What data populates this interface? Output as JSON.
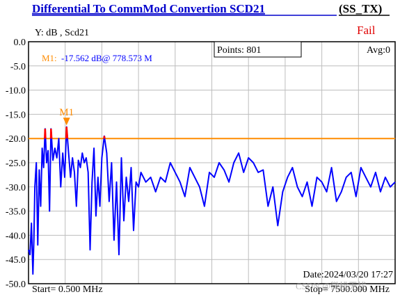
{
  "header": {
    "title": "Differential To CommMod Convertion SCD21",
    "tag": "(SS_TX)"
  },
  "status": {
    "result": "Fail"
  },
  "info": {
    "y_label": "Y: dB , Scd21",
    "points": "Points: 801",
    "avg": "Avg:0",
    "marker_readout_name": "M1:",
    "marker_readout_value": "-17.562 dB@ 778.573 M",
    "marker_flag": "M1",
    "date": "Date:2024/03/20 17:27",
    "start": "Start= 0.500 MHz",
    "stop": "Stop= 7500.000 MHz",
    "watermark": "CSDN @微桃无忧"
  },
  "colors": {
    "trace": "#0000ff",
    "limit": "#ff8c00",
    "fail_segment": "#ff0000",
    "marker": "#ff8c00",
    "fail_text": "#e00000",
    "title_link": "#0000cc",
    "marker_value": "#0000ff"
  },
  "chart_data": {
    "type": "line",
    "xlim": [
      0.5,
      7500
    ],
    "ylim": [
      -50,
      0
    ],
    "yticks": [
      "0.0",
      "-5.0",
      "-10.0",
      "-15.0",
      "-20.0",
      "-25.0",
      "-30.0",
      "-35.0",
      "-40.0",
      "-45.0",
      "-50.0"
    ],
    "grid": true,
    "limit_line": -20,
    "marker": {
      "name": "M1",
      "x": 778.573,
      "y": -17.562
    },
    "series": [
      {
        "x": [
          0.5,
          30,
          60,
          90,
          110,
          130,
          160,
          190,
          220,
          250,
          280,
          310,
          340,
          370,
          400,
          430,
          460,
          500,
          540,
          580,
          620,
          660,
          700,
          740,
          778.573,
          820,
          860,
          900,
          940,
          980,
          1020,
          1060,
          1100,
          1140,
          1180,
          1220,
          1260,
          1300,
          1340,
          1380,
          1420,
          1460,
          1500,
          1550,
          1600,
          1650,
          1700,
          1750,
          1800,
          1850,
          1900,
          1950,
          2000,
          2050,
          2100,
          2150,
          2200,
          2250,
          2300,
          2400,
          2500,
          2600,
          2700,
          2800,
          2900,
          3000,
          3100,
          3200,
          3300,
          3400,
          3500,
          3600,
          3700,
          3800,
          3900,
          4000,
          4100,
          4200,
          4300,
          4400,
          4500,
          4600,
          4700,
          4800,
          4900,
          5000,
          5100,
          5200,
          5300,
          5400,
          5500,
          5600,
          5700,
          5800,
          5900,
          6000,
          6100,
          6200,
          6300,
          6400,
          6500,
          6600,
          6700,
          6800,
          6900,
          7000,
          7100,
          7200,
          7300,
          7400,
          7500
        ],
        "y": [
          -43,
          -44,
          -37.5,
          -48,
          -41,
          -30,
          -25,
          -42,
          -26.5,
          -34,
          -22,
          -26,
          -18,
          -25,
          -22.5,
          -35,
          -18,
          -24.5,
          -22,
          -24,
          -20,
          -30,
          -23,
          -28,
          -17.6,
          -23,
          -28,
          -24,
          -27,
          -34,
          -24.5,
          -26,
          -23,
          -25,
          -24,
          -27,
          -43,
          -29,
          -22,
          -36,
          -28,
          -34,
          -24,
          -19.5,
          -23,
          -33,
          -25,
          -41,
          -29,
          -44,
          -24,
          -37,
          -28,
          -33,
          -26,
          -39,
          -29,
          -30,
          -27,
          -29,
          -28,
          -31,
          -28,
          -29,
          -25,
          -27,
          -29,
          -32,
          -26,
          -28,
          -30,
          -34,
          -27,
          -28,
          -25,
          -26.5,
          -29,
          -25,
          -23,
          -27,
          -24,
          -25,
          -27,
          -26.5,
          -34,
          -30,
          -38,
          -31,
          -28,
          -26,
          -30,
          -32,
          -29,
          -34,
          -28,
          -29,
          -31,
          -26,
          -33,
          -31,
          -28,
          -27,
          -32,
          -26,
          -28,
          -30,
          -27,
          -31,
          -28,
          -30,
          -29
        ]
      }
    ]
  }
}
